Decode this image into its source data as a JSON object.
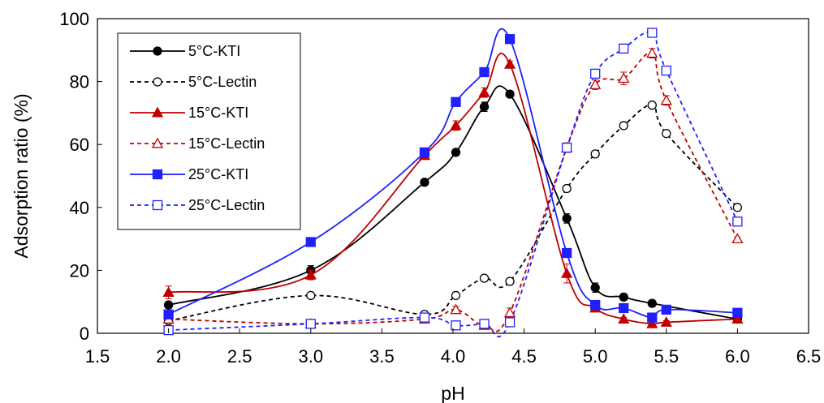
{
  "chart_data": {
    "type": "line",
    "title": "",
    "xlabel": "pH",
    "ylabel": "Adsorption ratio (%)",
    "xlim": [
      1.5,
      6.5
    ],
    "ylim": [
      0,
      100
    ],
    "xticks": [
      "1.5",
      "2.0",
      "2.5",
      "3.0",
      "3.5",
      "4.0",
      "4.5",
      "5.0",
      "5.5",
      "6.0",
      "6.5"
    ],
    "yticks": [
      "0",
      "20",
      "40",
      "60",
      "80",
      "100"
    ],
    "grid": false,
    "legend": "top-left",
    "series": [
      {
        "name": "5°C-KTI",
        "color": "#000000",
        "dash": false,
        "marker": "circle",
        "filled": true,
        "x": [
          2.0,
          3.0,
          3.8,
          4.02,
          4.22,
          4.4,
          4.8,
          5.0,
          5.2,
          5.4,
          6.0
        ],
        "y": [
          9,
          20,
          48,
          57.5,
          72,
          76,
          36.5,
          14.5,
          11.5,
          9.5,
          4.5
        ],
        "err": [
          1,
          1.5,
          1,
          1,
          1.5,
          1,
          1.5,
          1.5,
          1,
          1,
          0.5
        ]
      },
      {
        "name": "5°C-Lectin",
        "color": "#000000",
        "dash": true,
        "marker": "circle",
        "filled": false,
        "x": [
          2.0,
          3.0,
          3.8,
          4.02,
          4.22,
          4.4,
          4.8,
          5.0,
          5.2,
          5.4,
          5.5,
          6.0
        ],
        "y": [
          4,
          12,
          6,
          12,
          17.5,
          16.5,
          46,
          57,
          66,
          72.5,
          63.5,
          40
        ],
        "err": [
          0.5,
          0.5,
          1,
          0.5,
          0.5,
          0.5,
          1,
          0.5,
          0.5,
          0.5,
          0.5,
          0.5
        ]
      },
      {
        "name": "15°C-KTI",
        "color": "#c00000",
        "dash": false,
        "marker": "triangle",
        "filled": true,
        "x": [
          2.0,
          3.0,
          3.8,
          4.02,
          4.22,
          4.4,
          4.8,
          5.0,
          5.2,
          5.4,
          5.5,
          6.0
        ],
        "y": [
          13,
          18.5,
          56.5,
          66,
          76.5,
          85.5,
          19,
          8,
          4.5,
          3,
          3.5,
          4.5
        ],
        "err": [
          2,
          1.5,
          1,
          1.5,
          1.5,
          1,
          3,
          1,
          0.5,
          0.5,
          0.5,
          0.5
        ]
      },
      {
        "name": "15°C-Lectin",
        "color": "#c00000",
        "dash": true,
        "marker": "triangle",
        "filled": false,
        "x": [
          2.0,
          3.0,
          3.8,
          4.02,
          4.22,
          4.4,
          4.8,
          5.0,
          5.2,
          5.4,
          5.5,
          6.0
        ],
        "y": [
          4.5,
          3,
          4.5,
          7.5,
          2.5,
          6.5,
          59,
          79,
          81,
          89,
          74,
          30
        ],
        "err": [
          0.5,
          0.5,
          0.5,
          1,
          1,
          1.5,
          1.5,
          1.5,
          2,
          1.5,
          1.5,
          0.5
        ]
      },
      {
        "name": "25°C-KTI",
        "color": "#1f1fff",
        "dash": false,
        "marker": "square",
        "filled": true,
        "x": [
          2.0,
          3.0,
          3.8,
          4.02,
          4.22,
          4.4,
          4.8,
          5.0,
          5.2,
          5.4,
          5.5,
          6.0
        ],
        "y": [
          6,
          29,
          57.5,
          73.5,
          83,
          93.5,
          25.5,
          9,
          8,
          5,
          7.5,
          6.5
        ],
        "err": [
          0.5,
          0.5,
          0.5,
          0.5,
          0.5,
          0.5,
          0.5,
          0.5,
          0.5,
          0.5,
          0.5,
          0.5
        ]
      },
      {
        "name": "25°C-Lectin",
        "color": "#1f1fff",
        "dash": true,
        "marker": "square",
        "filled": false,
        "x": [
          2.0,
          3.0,
          3.8,
          4.02,
          4.22,
          4.4,
          4.8,
          5.0,
          5.2,
          5.4,
          5.5,
          6.0
        ],
        "y": [
          1,
          3,
          5,
          2.5,
          3,
          3.5,
          59,
          82.5,
          90.5,
          95.5,
          83.5,
          35.5
        ],
        "err": [
          0.5,
          0.5,
          0.5,
          0.5,
          0.5,
          0.5,
          1,
          1,
          1,
          1,
          1,
          1
        ]
      }
    ]
  }
}
